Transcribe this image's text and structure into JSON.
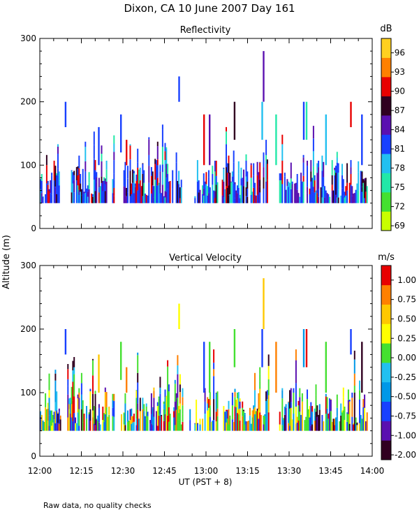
{
  "title": "Dixon, CA 10 June 2007  Day 161",
  "footnote": "Raw data, no quality checks",
  "y_axis_label": "Altitude (m)",
  "x_axis_label": "UT  (PST + 8)",
  "x_ticks": [
    "12:00",
    "12:15",
    "12:30",
    "12:45",
    "13:00",
    "13:15",
    "13:30",
    "13:45",
    "14:00"
  ],
  "y_ticks": [
    "0",
    "100",
    "200",
    "300"
  ],
  "colors": {
    "reflectivity_scale": [
      "#c8ff00",
      "#44e030",
      "#22e8a8",
      "#22c0f0",
      "#1840ff",
      "#5a10b0",
      "#300020",
      "#e80000",
      "#ff8000",
      "#ffd020"
    ],
    "velocity_scale": [
      "#300020",
      "#5a10b0",
      "#1840ff",
      "#0098e8",
      "#22c0f0",
      "#44e030",
      "#ffff00",
      "#ffc800",
      "#ff8000",
      "#e80000"
    ]
  },
  "chart_data": [
    {
      "type": "heatmap",
      "name": "reflectivity",
      "title": "Reflectivity",
      "xlabel": "UT  (PST + 8)",
      "ylabel": "Altitude (m)",
      "x_range_min": [
        720,
        840
      ],
      "ylim": [
        0,
        300
      ],
      "colorbar_unit": "dB",
      "colorbar_ticks": [
        "96",
        "93",
        "90",
        "87",
        "84",
        "81",
        "78",
        "75",
        "72",
        "69"
      ],
      "colorbar_range": [
        67.5,
        97.5
      ],
      "data_x_range_min": [
        720,
        838
      ],
      "data_y_range": [
        40,
        280
      ],
      "description_values": "echo columns mostly 40-140 m, scattered tops to 200 m, isolated echo near 13:20 at 240-280 m"
    },
    {
      "type": "heatmap",
      "name": "vertical_velocity",
      "title": "Vertical Velocity",
      "xlabel": "UT  (PST + 8)",
      "ylabel": "Altitude (m)",
      "x_range_min": [
        720,
        840
      ],
      "ylim": [
        0,
        300
      ],
      "colorbar_unit": "m/s",
      "colorbar_ticks": [
        "1.00",
        "0.75",
        "0.50",
        "0.25",
        "0.00",
        "-0.25",
        "-0.50",
        "-0.75",
        "-1.00",
        "-2.00"
      ],
      "colorbar_range": [
        -2.0,
        1.2
      ],
      "data_x_range_min": [
        720,
        838
      ],
      "data_y_range": [
        40,
        280
      ]
    }
  ]
}
